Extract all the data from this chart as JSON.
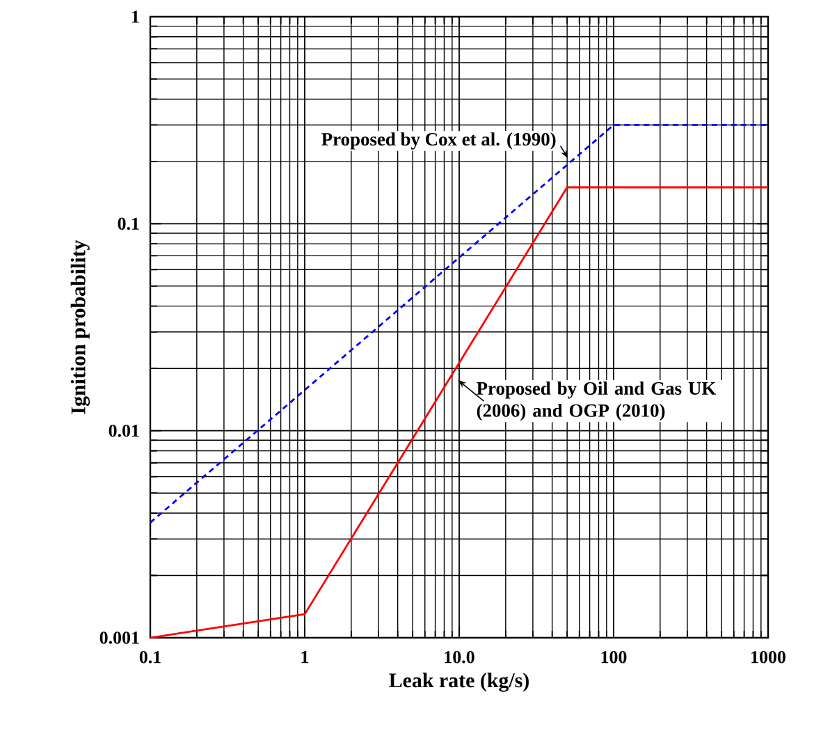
{
  "chart_data": {
    "type": "line",
    "xlabel": "Leak rate (kg/s)",
    "ylabel": "Ignition probability",
    "log": "xy",
    "grid": true,
    "legend": false,
    "marker": "none",
    "xlim": [
      0.1,
      1000
    ],
    "ylim": [
      0.001,
      1
    ],
    "xticks": [
      0.1,
      1,
      {
        "value": 10,
        "label": "10.0"
      },
      100,
      1000
    ],
    "yticks": [
      0.001,
      0.01,
      0.1,
      1
    ],
    "series": [
      {
        "name": "Proposed by Cox et al. (1990)",
        "color": "#0000ff",
        "line_style": "dashed",
        "x": [
          0.1,
          100,
          1000
        ],
        "values": [
          0.0036,
          0.3,
          0.3
        ]
      },
      {
        "name": "Proposed by Oil and Gas UK (2006) and OGP (2010)",
        "color": "#ff0000",
        "line_style": "solid",
        "x": [
          0.1,
          1,
          50,
          1000
        ],
        "values": [
          0.001,
          0.0013,
          0.15,
          0.15
        ]
      }
    ]
  }
}
